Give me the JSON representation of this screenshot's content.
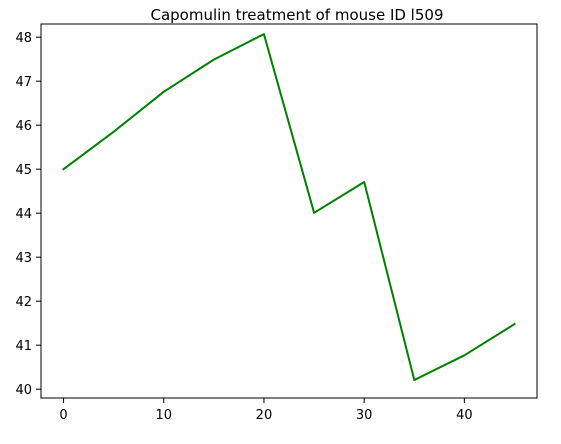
{
  "chart_data": {
    "type": "line",
    "title": "Capomulin treatment of mouse ID l509",
    "xlabel": "",
    "ylabel": "",
    "xlim": [
      -2.25,
      47.25
    ],
    "ylim": [
      39.8,
      48.3
    ],
    "xticks": [
      0,
      10,
      20,
      30,
      40
    ],
    "yticks": [
      40,
      41,
      42,
      43,
      44,
      45,
      46,
      47,
      48
    ],
    "grid": false,
    "series": [
      {
        "color": "#008000",
        "points": [
          {
            "x": 0,
            "y": 45.0
          },
          {
            "x": 5,
            "y": 45.85
          },
          {
            "x": 10,
            "y": 46.76
          },
          {
            "x": 15,
            "y": 47.49
          },
          {
            "x": 20,
            "y": 48.07
          },
          {
            "x": 25,
            "y": 44.01
          },
          {
            "x": 30,
            "y": 44.71
          },
          {
            "x": 35,
            "y": 40.21
          },
          {
            "x": 40,
            "y": 40.77
          },
          {
            "x": 45,
            "y": 41.48
          }
        ]
      }
    ]
  }
}
